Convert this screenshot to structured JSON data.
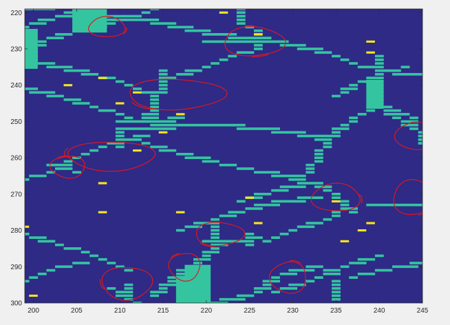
{
  "chart_data": {
    "type": "heatmap",
    "title": "",
    "xlabel": "",
    "ylabel": "",
    "xlim": [
      199,
      245
    ],
    "ylim": [
      219,
      300
    ],
    "y_reversed": true,
    "xticks": [
      200,
      205,
      210,
      215,
      220,
      225,
      230,
      235,
      240,
      245
    ],
    "yticks": [
      220,
      230,
      240,
      250,
      260,
      270,
      280,
      290,
      300
    ],
    "colors": {
      "background": "#2e2a86",
      "boundary": "#35c4a0",
      "marker": "#f8e51c",
      "annotation": "#e0161e",
      "figure_bg": "#f0f0f0",
      "axes_frame": "#262626"
    },
    "grid": false,
    "boundary_paths": [
      [
        [
          199,
          224
        ],
        [
          203,
          221
        ],
        [
          207,
          219
        ]
      ],
      [
        [
          206,
          219
        ],
        [
          206,
          224
        ],
        [
          208,
          224
        ]
      ],
      [
        [
          199,
          233
        ],
        [
          201,
          228
        ],
        [
          205,
          225
        ],
        [
          208,
          223
        ],
        [
          212,
          221
        ],
        [
          214,
          219
        ]
      ],
      [
        [
          207,
          221
        ],
        [
          211,
          221
        ],
        [
          215,
          223
        ],
        [
          219,
          225
        ],
        [
          224,
          227
        ],
        [
          226,
          227
        ],
        [
          230,
          229
        ],
        [
          234,
          231
        ],
        [
          237,
          234
        ],
        [
          240,
          236
        ],
        [
          243,
          237
        ],
        [
          245,
          237
        ]
      ],
      [
        [
          199,
          233
        ],
        [
          203,
          235
        ],
        [
          207,
          237
        ],
        [
          210,
          239
        ],
        [
          212,
          241
        ],
        [
          214,
          243
        ],
        [
          214,
          247
        ],
        [
          213,
          250
        ]
      ],
      [
        [
          215,
          236
        ],
        [
          215,
          241
        ],
        [
          214,
          243
        ]
      ],
      [
        [
          199,
          241
        ],
        [
          203,
          243
        ],
        [
          207,
          246
        ],
        [
          210,
          248
        ],
        [
          212,
          250
        ],
        [
          216,
          251
        ],
        [
          221,
          251
        ],
        [
          227,
          252
        ],
        [
          232,
          254
        ],
        [
          234,
          255
        ]
      ],
      [
        [
          210,
          250
        ],
        [
          216,
          250
        ],
        [
          216,
          252
        ],
        [
          210,
          252
        ]
      ],
      [
        [
          213,
          248
        ],
        [
          215,
          250
        ],
        [
          217,
          249
        ]
      ],
      [
        [
          216,
          238
        ],
        [
          220,
          235
        ],
        [
          223,
          232
        ],
        [
          226,
          230
        ],
        [
          226,
          226
        ]
      ],
      [
        [
          220,
          228
        ],
        [
          223,
          228
        ],
        [
          227,
          228
        ]
      ],
      [
        [
          224,
          219
        ],
        [
          224,
          223
        ],
        [
          226,
          225
        ],
        [
          226,
          227
        ]
      ],
      [
        [
          224,
          219
        ],
        [
          224,
          223
        ]
      ],
      [
        [
          240,
          232
        ],
        [
          240,
          244
        ]
      ],
      [
        [
          235,
          243
        ],
        [
          238,
          239
        ],
        [
          240,
          237
        ],
        [
          243,
          235
        ]
      ],
      [
        [
          234,
          255
        ],
        [
          236,
          251
        ],
        [
          238,
          248
        ],
        [
          240,
          245
        ],
        [
          244,
          249
        ],
        [
          245,
          256
        ]
      ],
      [
        [
          240,
          246
        ],
        [
          243,
          250
        ],
        [
          244,
          252
        ]
      ],
      [
        [
          199,
          266
        ],
        [
          202,
          264
        ],
        [
          205,
          260
        ],
        [
          209,
          256
        ],
        [
          213,
          254
        ]
      ],
      [
        [
          210,
          252
        ],
        [
          210,
          257
        ]
      ],
      [
        [
          202,
          262
        ],
        [
          204,
          263
        ],
        [
          205,
          264
        ]
      ],
      [
        [
          213,
          256
        ],
        [
          217,
          259
        ],
        [
          221,
          261
        ],
        [
          224,
          263
        ],
        [
          227,
          264
        ],
        [
          231,
          266
        ],
        [
          234,
          268
        ]
      ],
      [
        [
          234,
          255
        ],
        [
          233,
          260
        ],
        [
          231,
          266
        ]
      ],
      [
        [
          224,
          272
        ],
        [
          228,
          269
        ],
        [
          232,
          267
        ],
        [
          235,
          270
        ],
        [
          236,
          273
        ],
        [
          237,
          275
        ]
      ],
      [
        [
          217,
          280
        ],
        [
          221,
          277
        ],
        [
          225,
          274
        ],
        [
          229,
          272
        ],
        [
          233,
          271
        ]
      ],
      [
        [
          221,
          278
        ],
        [
          221,
          284
        ]
      ],
      [
        [
          220,
          283
        ],
        [
          224,
          283
        ],
        [
          226,
          282
        ]
      ],
      [
        [
          225,
          281
        ],
        [
          225,
          284
        ]
      ],
      [
        [
          227,
          283
        ],
        [
          230,
          280
        ],
        [
          234,
          277
        ],
        [
          236,
          274
        ]
      ],
      [
        [
          239,
          273
        ],
        [
          243,
          273
        ],
        [
          245,
          273
        ]
      ],
      [
        [
          199,
          281
        ],
        [
          203,
          284
        ],
        [
          206,
          286
        ],
        [
          209,
          289
        ],
        [
          211,
          291
        ]
      ],
      [
        [
          206,
          289
        ],
        [
          203,
          290
        ],
        [
          201,
          292
        ],
        [
          199,
          294
        ]
      ],
      [
        [
          211,
          295
        ],
        [
          211,
          299
        ]
      ],
      [
        [
          209,
          296
        ],
        [
          212,
          300
        ]
      ],
      [
        [
          214,
          298
        ],
        [
          218,
          290
        ],
        [
          222,
          284
        ]
      ],
      [
        [
          217,
          293
        ],
        [
          217,
          300
        ]
      ],
      [
        [
          218,
          291
        ],
        [
          219,
          299
        ]
      ],
      [
        [
          226,
          296
        ],
        [
          229,
          292
        ],
        [
          233,
          290
        ],
        [
          235,
          292
        ]
      ],
      [
        [
          235,
          294
        ],
        [
          235,
          299
        ]
      ],
      [
        [
          237,
          293
        ],
        [
          240,
          291
        ],
        [
          243,
          290
        ],
        [
          245,
          289
        ]
      ],
      [
        [
          228,
          297
        ],
        [
          232,
          294
        ],
        [
          236,
          290
        ],
        [
          240,
          287
        ]
      ],
      [
        [
          221,
          300
        ],
        [
          225,
          298
        ],
        [
          227,
          296
        ]
      ],
      [
        [
          199,
          219
        ],
        [
          202,
          219
        ]
      ]
    ],
    "boundary_blocks": [
      {
        "x": [
          205,
          208
        ],
        "y": [
          219,
          225
        ]
      },
      {
        "x": [
          199,
          200
        ],
        "y": [
          225,
          235
        ]
      },
      {
        "x": [
          239,
          240
        ],
        "y": [
          239,
          246
        ]
      },
      {
        "x": [
          218,
          220
        ],
        "y": [
          290,
          300
        ]
      },
      {
        "x": [
          217,
          218
        ],
        "y": [
          293,
          300
        ]
      }
    ],
    "markers": [
      [
        222,
        220
      ],
      [
        226,
        226
      ],
      [
        239,
        228
      ],
      [
        239,
        231
      ],
      [
        208,
        238
      ],
      [
        204,
        240
      ],
      [
        212,
        242
      ],
      [
        210,
        245
      ],
      [
        217,
        248
      ],
      [
        215,
        253
      ],
      [
        212,
        258
      ],
      [
        208,
        267
      ],
      [
        225,
        271
      ],
      [
        235,
        272
      ],
      [
        208,
        275
      ],
      [
        217,
        275
      ],
      [
        199,
        279
      ],
      [
        226,
        278
      ],
      [
        239,
        278
      ],
      [
        238,
        280
      ],
      [
        236,
        283
      ],
      [
        200,
        298
      ]
    ],
    "annotations": [
      {
        "type": "ellipse",
        "cx": 208.5,
        "cy": 224,
        "rx": 2.1,
        "ry": 2.8
      },
      {
        "type": "ellipse",
        "cx": 225.5,
        "cy": 228,
        "rx": 3.5,
        "ry": 4.0
      },
      {
        "type": "ellipse",
        "cx": 216.5,
        "cy": 242.5,
        "rx": 5.6,
        "ry": 4.2
      },
      {
        "type": "ellipse",
        "cx": 209,
        "cy": 259.5,
        "rx": 5.0,
        "ry": 4.0
      },
      {
        "type": "ellipse",
        "cx": 204,
        "cy": 262.5,
        "rx": 2.0,
        "ry": 3.0
      },
      {
        "type": "ellipse",
        "cx": 244.1,
        "cy": 254,
        "rx": 2.2,
        "ry": 3.8
      },
      {
        "type": "ellipse",
        "cx": 235,
        "cy": 271,
        "rx": 2.8,
        "ry": 3.8
      },
      {
        "type": "ellipse",
        "cx": 244,
        "cy": 271,
        "rx": 2.4,
        "ry": 4.8
      },
      {
        "type": "ellipse",
        "cx": 221.5,
        "cy": 281,
        "rx": 2.8,
        "ry": 3.2
      },
      {
        "type": "ellipse",
        "cx": 210.8,
        "cy": 294.5,
        "rx": 2.9,
        "ry": 4.5
      },
      {
        "type": "ellipse",
        "cx": 217.5,
        "cy": 290,
        "rx": 1.8,
        "ry": 3.8
      },
      {
        "type": "ellipse",
        "cx": 229.5,
        "cy": 293,
        "rx": 2.1,
        "ry": 4.3
      }
    ]
  }
}
